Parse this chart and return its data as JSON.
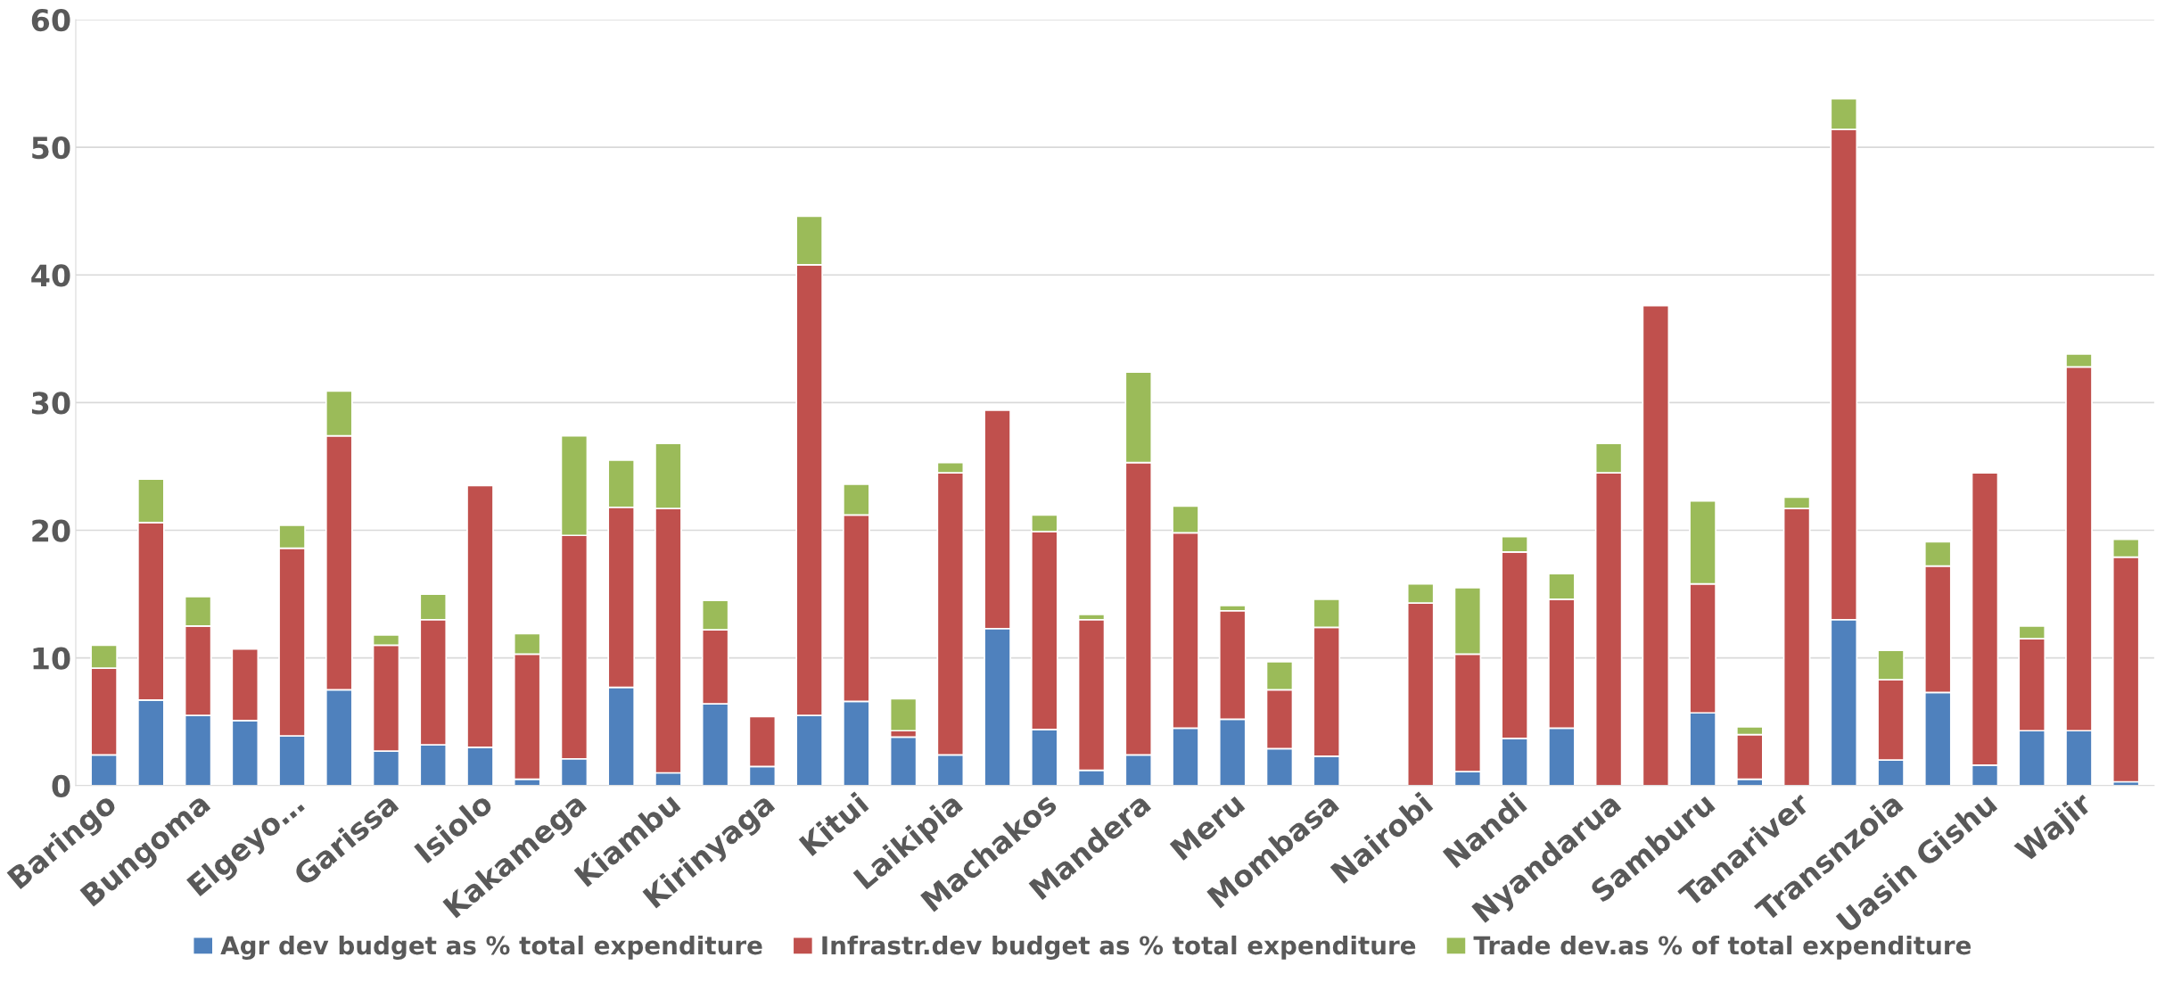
{
  "chart_data": {
    "type": "bar",
    "stacked": true,
    "categories": [
      "Baringo",
      null,
      "Bungoma",
      null,
      "Elgeyo…",
      null,
      "Garissa",
      null,
      "Isiolo",
      null,
      "Kakamega",
      null,
      "Kiambu",
      null,
      "Kirinyaga",
      null,
      "Kitui",
      null,
      "Laikipia",
      null,
      "Machakos",
      null,
      "Mandera",
      null,
      "Meru",
      null,
      "Mombasa",
      null,
      "Nairobi",
      null,
      "Nandi",
      null,
      "Nyandarua",
      null,
      "Samburu",
      null,
      "Tanariver",
      null,
      "Transnzoia",
      null,
      "Uasin Gishu",
      null,
      "Wajir",
      null
    ],
    "series": [
      {
        "name": "Agr dev budget as % total expenditure",
        "color": "#4f81bd",
        "values": [
          2.4,
          6.7,
          5.5,
          5.1,
          3.9,
          7.5,
          2.7,
          3.2,
          3.0,
          0.5,
          2.1,
          7.7,
          1.0,
          6.4,
          1.5,
          5.5,
          6.6,
          3.8,
          2.4,
          12.3,
          4.4,
          1.2,
          2.4,
          4.5,
          5.2,
          2.9,
          2.3,
          null,
          null,
          1.1,
          3.7,
          4.5,
          null,
          null,
          5.7,
          0.5,
          null,
          13.0,
          2.0,
          7.3,
          1.6,
          4.3,
          4.3,
          0.3
        ]
      },
      {
        "name": "Infrastr.dev budget as % total expenditure",
        "color": "#c0504d",
        "values": [
          6.8,
          13.9,
          7.0,
          5.6,
          14.7,
          19.9,
          8.3,
          9.8,
          20.5,
          9.8,
          17.5,
          14.1,
          20.7,
          5.8,
          3.9,
          35.3,
          14.6,
          0.5,
          22.1,
          17.1,
          15.5,
          11.8,
          22.9,
          15.3,
          8.5,
          4.6,
          10.1,
          null,
          14.3,
          9.2,
          14.6,
          10.1,
          24.5,
          37.6,
          10.1,
          3.5,
          21.7,
          38.4,
          6.3,
          9.9,
          22.9,
          7.2,
          28.5,
          17.6
        ]
      },
      {
        "name": "Trade dev.as % of total expenditure",
        "color": "#9bbb59",
        "values": [
          1.8,
          3.4,
          2.3,
          null,
          1.8,
          3.5,
          0.8,
          2.0,
          null,
          1.6,
          7.8,
          3.7,
          5.1,
          2.3,
          null,
          3.8,
          2.4,
          2.5,
          0.8,
          null,
          1.3,
          0.4,
          7.1,
          2.1,
          0.4,
          2.2,
          2.2,
          null,
          1.5,
          5.2,
          1.2,
          2.0,
          2.3,
          null,
          6.5,
          0.6,
          0.9,
          2.4,
          2.3,
          1.9,
          null,
          1.0,
          1.0,
          1.4
        ]
      }
    ],
    "ylim": [
      0,
      60
    ],
    "yticks": [
      0,
      10,
      20,
      30,
      40,
      50,
      60
    ],
    "grid": "y",
    "legend": "bottom"
  }
}
